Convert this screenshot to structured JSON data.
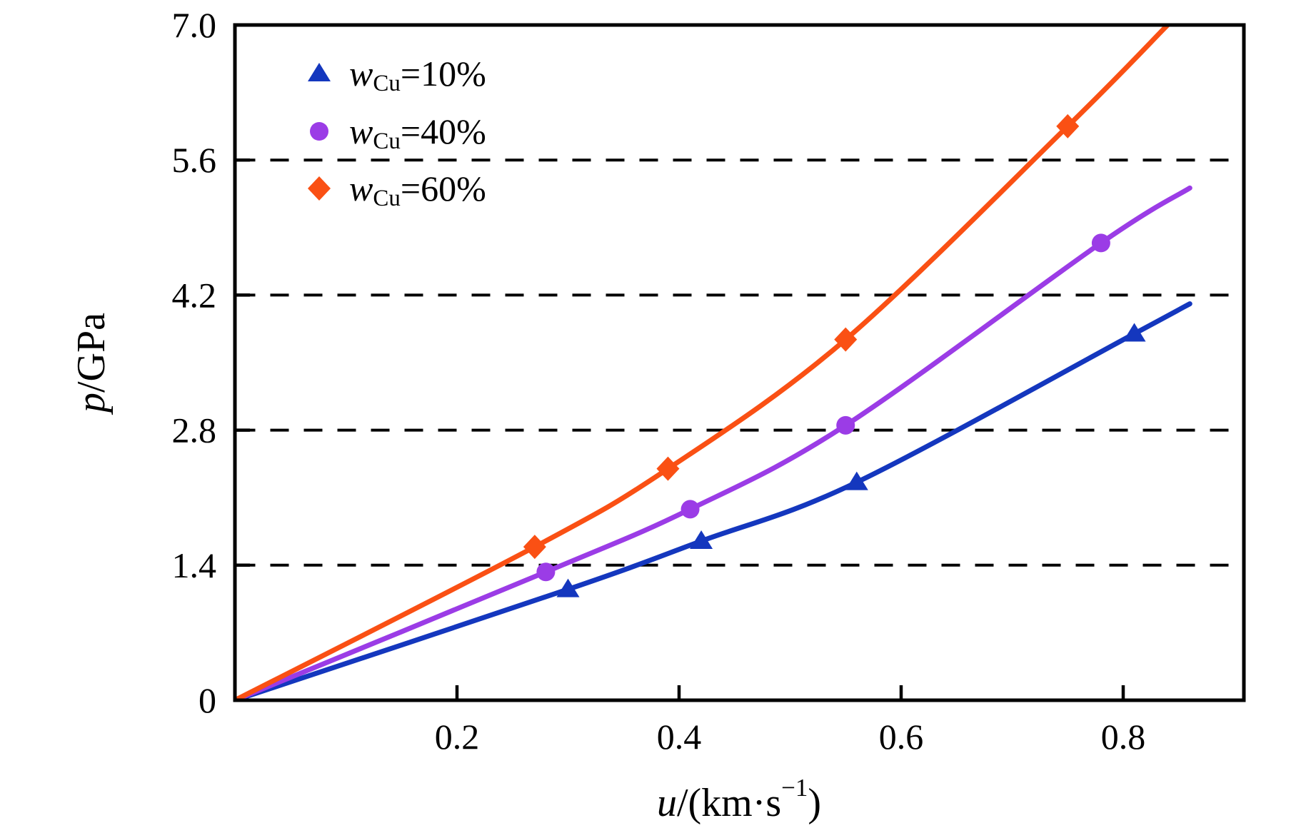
{
  "figure": {
    "background": "#ffffff",
    "frame_color": "#000000",
    "text_color": "#000000"
  },
  "chart_data": {
    "type": "line",
    "title": "",
    "grid": "dashed-horizontal",
    "legend_position": "top-left-inside",
    "x_axis": {
      "label_parts": {
        "var": "u",
        "mid": "/(km·s",
        "sup": "−1",
        "close": ")"
      },
      "range": [
        0,
        0.909
      ],
      "ticks": [
        {
          "value": 0.2,
          "label": "0.2"
        },
        {
          "value": 0.4,
          "label": "0.4"
        },
        {
          "value": 0.6,
          "label": "0.6"
        },
        {
          "value": 0.8,
          "label": "0.8"
        }
      ]
    },
    "y_axis": {
      "label_parts": {
        "var": "p",
        "rest": "/GPa"
      },
      "range": [
        0,
        7.0
      ],
      "ticks": [
        {
          "value": 0,
          "label": "0"
        },
        {
          "value": 1.4,
          "label": "1.4"
        },
        {
          "value": 2.8,
          "label": "2.8"
        },
        {
          "value": 4.2,
          "label": "4.2"
        },
        {
          "value": 5.6,
          "label": "5.6"
        },
        {
          "value": 7.0,
          "label": "7.0"
        }
      ],
      "gridlines": [
        1.4,
        2.8,
        4.2,
        5.6
      ]
    },
    "series": [
      {
        "label_parts": {
          "var": "w",
          "sub": "Cu",
          "value": "=10%"
        },
        "marker": "triangle",
        "color": "#1437be",
        "points": [
          [
            0.3,
            1.15
          ],
          [
            0.42,
            1.65
          ],
          [
            0.56,
            2.26
          ],
          [
            0.81,
            3.8
          ]
        ],
        "curve_start": [
          0,
          0
        ],
        "curve_end": [
          0.86,
          4.11
        ]
      },
      {
        "label_parts": {
          "var": "w",
          "sub": "Cu",
          "value": "=40%"
        },
        "marker": "circle",
        "color": "#9b3ce6",
        "points": [
          [
            0.28,
            1.33
          ],
          [
            0.41,
            1.98
          ],
          [
            0.55,
            2.85
          ],
          [
            0.78,
            4.74
          ]
        ],
        "curve_start": [
          0,
          0
        ],
        "curve_end": [
          0.86,
          5.31
        ]
      },
      {
        "label_parts": {
          "var": "w",
          "sub": "Cu",
          "value": "=60%"
        },
        "marker": "diamond",
        "color": "#fa5014",
        "points": [
          [
            0.27,
            1.59
          ],
          [
            0.39,
            2.4
          ],
          [
            0.55,
            3.74
          ],
          [
            0.75,
            5.95
          ]
        ],
        "curve_start": [
          0,
          0
        ],
        "curve_end": [
          0.84,
          7.0
        ]
      }
    ]
  }
}
